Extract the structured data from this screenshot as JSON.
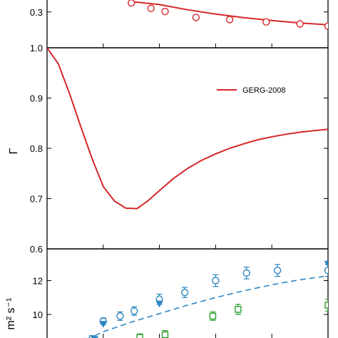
{
  "chart_data": [
    {
      "type": "scatter",
      "panel": "top",
      "ylim": [
        0.15,
        0.35
      ],
      "yticks": [
        {
          "value": 0.3,
          "label": "0.3"
        }
      ],
      "x_range": [
        0,
        10
      ],
      "series": [
        {
          "kind": "line",
          "color": "#d62728",
          "x": [
            3.0,
            4.0,
            5.0,
            6.0,
            7.0,
            8.0,
            9.0,
            10.0
          ],
          "y": [
            0.343,
            0.331,
            0.309,
            0.291,
            0.276,
            0.264,
            0.254,
            0.246
          ]
        },
        {
          "kind": "open-circle",
          "color": "#d62728",
          "x": [
            3.0,
            3.7,
            4.2,
            5.3,
            6.5,
            7.8,
            9.0,
            10.0
          ],
          "y": [
            0.338,
            0.315,
            0.302,
            0.277,
            0.268,
            0.258,
            0.25,
            0.241
          ]
        }
      ]
    },
    {
      "type": "line",
      "panel": "middle",
      "ylabel": "Γ",
      "ylim": [
        0.6,
        1.0
      ],
      "yticks": [
        {
          "value": 1.0,
          "label": "1.0"
        },
        {
          "value": 0.9,
          "label": "0.9"
        },
        {
          "value": 0.8,
          "label": "0.8"
        },
        {
          "value": 0.7,
          "label": "0.7"
        },
        {
          "value": 0.6,
          "label": "0.6"
        }
      ],
      "x_range": [
        0,
        10
      ],
      "legend": {
        "placement": "top-right",
        "entries": [
          {
            "label": "GERG-2008",
            "color": "#d62728"
          }
        ]
      },
      "series": [
        {
          "name": "GERG-2008",
          "color": "#d62728",
          "x": [
            0,
            0.4,
            0.8,
            1.2,
            1.6,
            2.0,
            2.4,
            2.8,
            3.2,
            3.6,
            4.0,
            4.5,
            5.0,
            5.5,
            6.0,
            6.5,
            7.0,
            7.5,
            8.0,
            8.5,
            9.0,
            9.5,
            10.0
          ],
          "y": [
            1.0,
            0.968,
            0.909,
            0.843,
            0.78,
            0.724,
            0.695,
            0.681,
            0.68,
            0.696,
            0.716,
            0.74,
            0.76,
            0.776,
            0.789,
            0.8,
            0.809,
            0.817,
            0.823,
            0.828,
            0.832,
            0.835,
            0.838
          ]
        }
      ]
    },
    {
      "type": "scatter",
      "panel": "bottom",
      "ylabel": "m² s⁻¹",
      "ylim": [
        8.4,
        13.2
      ],
      "yticks": [
        {
          "value": 12,
          "label": "12"
        },
        {
          "value": 10,
          "label": "10"
        }
      ],
      "x_range": [
        0,
        10
      ],
      "series": [
        {
          "kind": "dashed-line",
          "color": "#2e86c1",
          "x": [
            1.4,
            2.0,
            3.0,
            4.0,
            5.0,
            6.0,
            7.0,
            8.0,
            9.0,
            10.0
          ],
          "y": [
            8.5,
            8.98,
            9.55,
            10.05,
            10.55,
            11.0,
            11.4,
            11.75,
            12.05,
            12.28
          ]
        },
        {
          "kind": "open-circle",
          "color": "#2e86c1",
          "has_error_bars": true,
          "x": [
            1.6,
            2.0,
            2.6,
            3.1,
            4.0,
            4.9,
            6.0,
            7.1,
            8.2,
            10.0
          ],
          "y": [
            8.55,
            9.6,
            9.9,
            10.2,
            10.9,
            11.3,
            12.0,
            12.45,
            12.6,
            12.6
          ],
          "err": [
            0.2,
            0.2,
            0.25,
            0.25,
            0.3,
            0.3,
            0.35,
            0.35,
            0.35,
            0.35
          ]
        },
        {
          "kind": "filled-triangle-down",
          "color": "#2e86c1",
          "x": [
            1.4,
            1.7,
            2.0,
            4.0,
            10.0
          ],
          "y": [
            8.45,
            8.55,
            9.45,
            10.65,
            13.0
          ]
        },
        {
          "kind": "open-square",
          "color": "#2ca02c",
          "has_error_bars": true,
          "x": [
            3.3,
            4.2,
            5.9,
            6.8,
            10.0
          ],
          "y": [
            8.65,
            8.8,
            9.9,
            10.3,
            10.55
          ],
          "err": [
            0.2,
            0.25,
            0.25,
            0.3,
            0.35
          ]
        }
      ]
    }
  ]
}
